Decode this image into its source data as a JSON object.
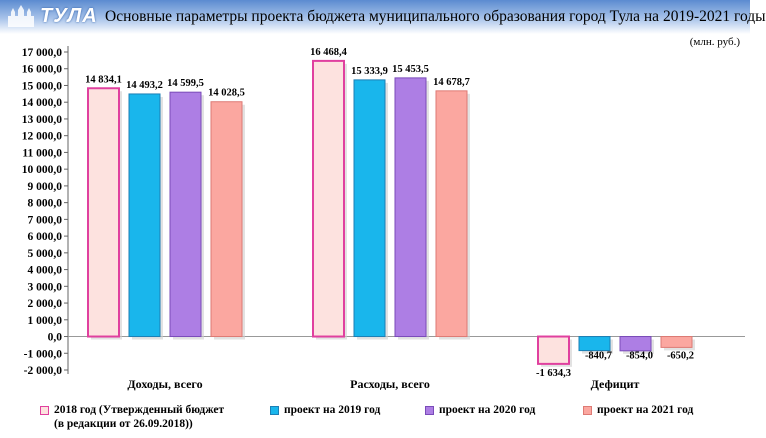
{
  "header": {
    "logo_text": "ТУЛА",
    "title": "Основные параметры проекта бюджета муниципального образования город Тула на 2019-2021 годы",
    "unit": "(млн. руб.)"
  },
  "colors": {
    "band": "#5b8bd0",
    "series": [
      "#fde2df",
      "#19b6ec",
      "#ad7ee4",
      "#fba7a0"
    ],
    "series_edges": [
      "#e0409f",
      "#1c7fb5",
      "#7a4bb9",
      "#de7a74"
    ]
  },
  "chart_data": {
    "type": "bar",
    "title": "Основные параметры проекта бюджета муниципального образования город Тула на 2019-2021 годы",
    "ylabel": "(млн. руб.)",
    "categories": [
      "Доходы, всего",
      "Расходы, всего",
      "Дефицит"
    ],
    "ylim": [
      -2000,
      17000
    ],
    "ytick_step": 1000,
    "yticks": [
      "17 000,0",
      "16 000,0",
      "15 000,0",
      "14 000,0",
      "13 000,0",
      "12 000,0",
      "11 000,0",
      "10 000,0",
      "9 000,0",
      "8 000,0",
      "7 000,0",
      "6 000,0",
      "5 000,0",
      "4 000,0",
      "3 000,0",
      "2 000,0",
      "1 000,0",
      "0,0",
      "-1 000,0",
      "-2 000,0"
    ],
    "grid": false,
    "legend_position": "bottom",
    "series": [
      {
        "name": "2018 год (Утвержденный бюджет",
        "name2": "(в редакции от 26.09.2018))",
        "values": [
          14834.1,
          16468.4,
          -1634.3
        ],
        "labels": [
          "14 834,1",
          "16 468,4",
          "-1 634,3"
        ]
      },
      {
        "name": "проект на 2019 год",
        "values": [
          14493.2,
          15333.9,
          -840.7
        ],
        "labels": [
          "14 493,2",
          "15 333,9",
          "-840,7"
        ]
      },
      {
        "name": "проект на 2020 год",
        "values": [
          14599.5,
          15453.5,
          -854.0
        ],
        "labels": [
          "14 599,5",
          "15 453,5",
          "-854,0"
        ]
      },
      {
        "name": "проект на 2021 год",
        "values": [
          14028.5,
          14678.7,
          -650.2
        ],
        "labels": [
          "14 028,5",
          "14 678,7",
          "-650,2"
        ]
      }
    ]
  }
}
